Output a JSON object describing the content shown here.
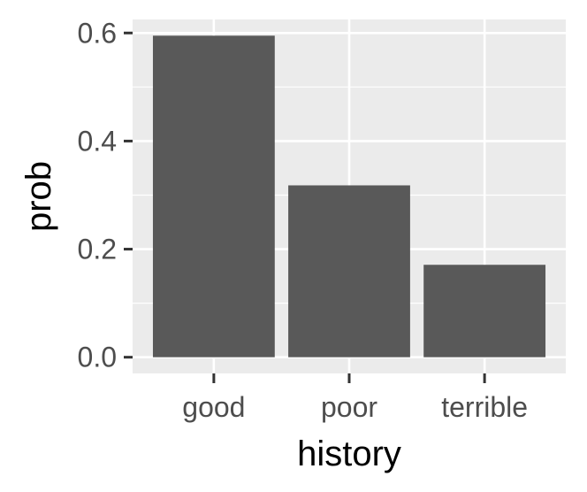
{
  "chart_data": {
    "type": "bar",
    "categories": [
      "good",
      "poor",
      "terrible"
    ],
    "values": [
      0.595,
      0.318,
      0.171
    ],
    "title": "",
    "xlabel": "history",
    "ylabel": "prob",
    "ylim": [
      -0.03,
      0.625
    ],
    "yticks": [
      0.0,
      0.2,
      0.4,
      0.6
    ],
    "ytick_labels": [
      "0.0",
      "0.2",
      "0.4",
      "0.6"
    ],
    "grid": true,
    "bar_color": "#595959",
    "panel_background": "#ebebeb",
    "grid_color": "#ffffff"
  }
}
